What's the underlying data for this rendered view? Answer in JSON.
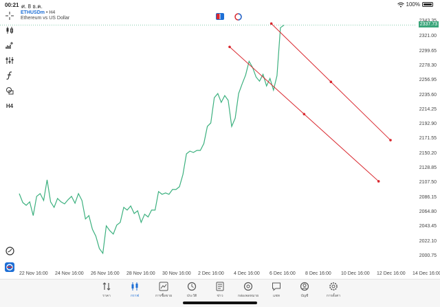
{
  "status": {
    "time": "00:21",
    "date": "ศ. 8 ธ.ค.",
    "battery": "100%"
  },
  "symbol": {
    "name": "ETHUSDm",
    "separator": "•",
    "timeframe": "H4",
    "description": "Ethereum vs US Dollar"
  },
  "toolbar": {
    "timeframe": "H4",
    "icons": [
      "crosshair-icon",
      "candles-icon",
      "indicators-add-icon",
      "settings-sliders-icon",
      "function-icon",
      "shapes-icon"
    ]
  },
  "current_price": "2337.73",
  "price_axis": [
    "2343.35",
    "2321.00",
    "2299.65",
    "2278.30",
    "2256.95",
    "2235.60",
    "2214.25",
    "2192.90",
    "2171.55",
    "2150.20",
    "2128.85",
    "2107.50",
    "2086.15",
    "2064.80",
    "2043.45",
    "2022.10",
    "2000.75"
  ],
  "time_axis": [
    "22 Nov 16:00",
    "24 Nov 16:00",
    "26 Nov 16:00",
    "28 Nov 16:00",
    "30 Nov 16:00",
    "2 Dec 16:00",
    "4 Dec 16:00",
    "6 Dec 16:00",
    "8 Dec 16:00",
    "10 Dec 16:00",
    "12 Dec 16:00",
    "14 Dec 16:00"
  ],
  "colors": {
    "price_line": "#3bb07e",
    "channel": "#d9272e",
    "accent": "#1d6fd6"
  },
  "chart_data": {
    "type": "line",
    "symbol": "ETHUSDm",
    "timeframe": "H4",
    "y_range": [
      2000.75,
      2343.35
    ],
    "x_range": [
      "22 Nov 16:00",
      "14 Dec 16:00"
    ],
    "series": [
      {
        "values": [
          2092,
          2079,
          2075,
          2080,
          2060,
          2088,
          2092,
          2082,
          2112,
          2080,
          2072,
          2085,
          2080,
          2077,
          2083,
          2088,
          2078,
          2092,
          2082,
          2055,
          2060,
          2040,
          2030,
          2012,
          2005,
          2045,
          2038,
          2033,
          2046,
          2050,
          2072,
          2068,
          2074,
          2063,
          2067,
          2050,
          2062,
          2058,
          2068,
          2068,
          2095,
          2091,
          2093,
          2091,
          2098,
          2098,
          2102,
          2120,
          2150,
          2154,
          2152,
          2155,
          2155,
          2165,
          2190,
          2195,
          2232,
          2238,
          2225,
          2235,
          2228,
          2190,
          2202,
          2238,
          2252,
          2265,
          2285,
          2276,
          2262,
          2256,
          2266,
          2249,
          2260,
          2243,
          2264,
          2334,
          2337.73
        ]
      }
    ]
  },
  "drawings": [
    {
      "type": "trendline-channel",
      "color": "#d9272e",
      "line1": [
        [
          "6 Dec 00:00",
          2340
        ],
        [
          "12 Dec 16:00",
          2170
        ]
      ],
      "line2": [
        [
          "3 Dec 16:00",
          2306
        ],
        [
          "12 Dec 00:00",
          2110
        ]
      ]
    }
  ],
  "tabs": [
    {
      "label": "ราคา",
      "icon": "quotes-icon",
      "active": false
    },
    {
      "label": "กราฟ",
      "icon": "chart-candles-icon",
      "active": true
    },
    {
      "label": "การซื้อขาย",
      "icon": "trade-icon",
      "active": false
    },
    {
      "label": "ประวัติ",
      "icon": "history-icon",
      "active": false
    },
    {
      "label": "ข่าว",
      "icon": "news-icon",
      "active": false
    },
    {
      "label": "กล่องจดหมาย",
      "icon": "mailbox-icon",
      "active": false
    },
    {
      "label": "แชท",
      "icon": "chat-icon",
      "active": false
    },
    {
      "label": "บัญชี",
      "icon": "account-icon",
      "active": false
    },
    {
      "label": "การตั้งค่า",
      "icon": "settings-icon",
      "active": false
    }
  ]
}
